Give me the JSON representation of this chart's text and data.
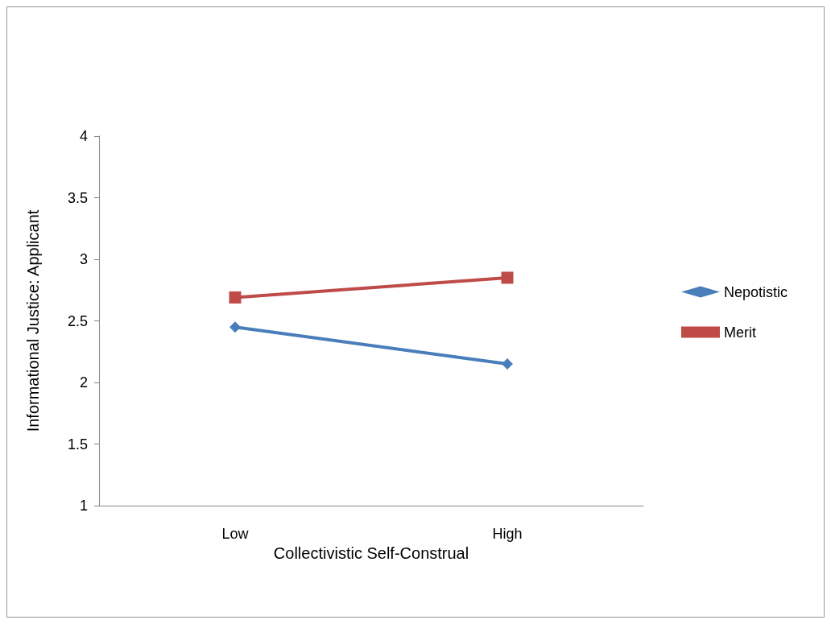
{
  "chart_data": {
    "type": "line",
    "xlabel": "Collectivistic Self-Construal",
    "ylabel": "Informational Justice: Applicant",
    "categories": [
      "Low",
      "High"
    ],
    "series": [
      {
        "name": "Nepotistic",
        "color": "#4a7ebb",
        "values": [
          2.45,
          2.15
        ],
        "marker": "diamond"
      },
      {
        "name": "Merit",
        "color": "#be4b48",
        "values": [
          2.69,
          2.85
        ],
        "marker": "square"
      }
    ],
    "ylim": [
      1,
      4
    ],
    "yticks": [
      1,
      1.5,
      2,
      2.5,
      3,
      3.5,
      4
    ],
    "grid": false,
    "legend": "right",
    "line_style": "solid"
  }
}
